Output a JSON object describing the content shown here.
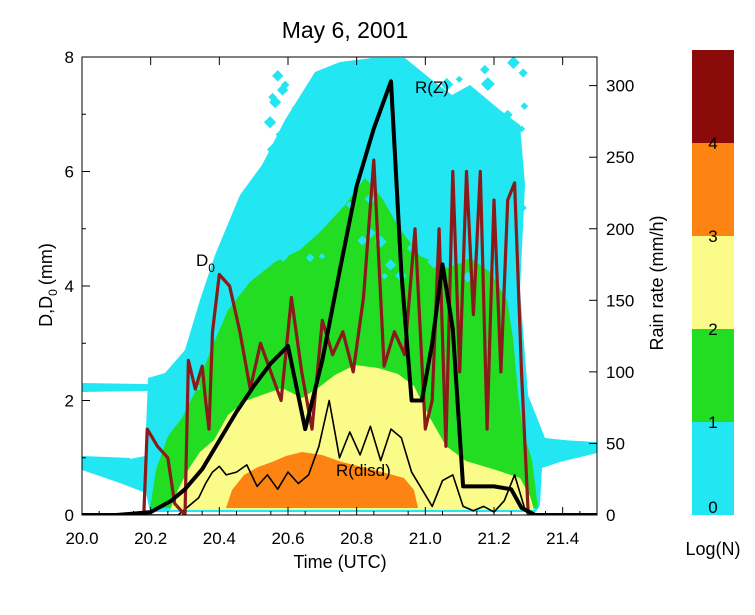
{
  "chart_data": {
    "type": "filled-contour-with-lines",
    "title": "May 6, 2001",
    "xlabel": "Time (UTC)",
    "ylabel_left": "D,D0 (mm)",
    "ylabel_left_main": "D,D",
    "ylabel_left_sub": "0",
    "ylabel_left_unit": "(mm)",
    "ylabel_right": "Rain rate (mm/h)",
    "xlim": [
      20.0,
      21.5
    ],
    "ylim_left": [
      0,
      8
    ],
    "ylim_right": [
      0,
      320
    ],
    "x_ticks": [
      "20.0",
      "20.2",
      "20.4",
      "20.6",
      "20.8",
      "21.0",
      "21.2",
      "21.4"
    ],
    "y_left_ticks": [
      "0",
      "2",
      "4",
      "6",
      "8"
    ],
    "y_right_ticks": [
      "0",
      "50",
      "100",
      "150",
      "200",
      "250",
      "300"
    ],
    "colorbar": {
      "label": "Log(N)",
      "ticks": [
        "0",
        "1",
        "2",
        "3",
        "4"
      ],
      "levels": [
        {
          "from": 0,
          "to": 1,
          "color": "#22e6f2"
        },
        {
          "from": 1,
          "to": 2,
          "color": "#22dd22"
        },
        {
          "from": 2,
          "to": 3,
          "color": "#fbfb8a"
        },
        {
          "from": 3,
          "to": 4,
          "color": "#fd8412"
        },
        {
          "from": 4,
          "to": 5,
          "color": "#8b0a0a"
        }
      ]
    },
    "annotations": {
      "rz": "R(Z)",
      "d0_main": "D",
      "d0_sub": "0",
      "rdisd": "R(disd)"
    },
    "series": [
      {
        "name": "R(Z)",
        "axis": "right",
        "color": "#000000",
        "x": [
          20.0,
          20.1,
          20.2,
          20.26,
          20.3,
          20.35,
          20.4,
          20.45,
          20.5,
          20.55,
          20.6,
          20.65,
          20.7,
          20.75,
          20.8,
          20.85,
          20.9,
          20.93,
          20.96,
          20.99,
          21.02,
          21.05,
          21.08,
          21.11,
          21.14,
          21.17,
          21.2,
          21.25,
          21.28,
          21.32,
          21.5
        ],
        "y": [
          0,
          0,
          2,
          10,
          18,
          32,
          52,
          72,
          90,
          106,
          118,
          60,
          108,
          170,
          230,
          270,
          303,
          170,
          80,
          80,
          120,
          175,
          130,
          20,
          20,
          20,
          20,
          18,
          5,
          0,
          0
        ]
      },
      {
        "name": "D0",
        "axis": "left",
        "color": "#8b1a1a",
        "x": [
          20.0,
          20.18,
          20.19,
          20.22,
          20.25,
          20.27,
          20.3,
          20.31,
          20.33,
          20.35,
          20.36,
          20.37,
          20.38,
          20.4,
          20.43,
          20.46,
          20.49,
          20.52,
          20.55,
          20.58,
          20.61,
          20.64,
          20.67,
          20.7,
          20.73,
          20.76,
          20.79,
          20.82,
          20.85,
          20.88,
          20.91,
          20.94,
          20.97,
          21.0,
          21.02,
          21.04,
          21.06,
          21.08,
          21.1,
          21.12,
          21.14,
          21.16,
          21.18,
          21.2,
          21.22,
          21.24,
          21.26,
          21.28,
          21.3,
          21.32,
          21.5
        ],
        "y": [
          0,
          0,
          1.5,
          1.2,
          1.0,
          0.2,
          0.0,
          2.7,
          2.2,
          2.6,
          2.0,
          1.5,
          3.2,
          4.2,
          4.0,
          3.2,
          2.2,
          3.0,
          2.5,
          2.0,
          3.8,
          2.5,
          1.5,
          3.4,
          2.8,
          3.2,
          2.5,
          3.8,
          6.2,
          2.6,
          3.2,
          2.8,
          5.0,
          1.5,
          2.0,
          5.0,
          1.2,
          6.0,
          2.5,
          6.0,
          3.5,
          6.0,
          1.5,
          5.5,
          2.5,
          5.5,
          5.8,
          2.5,
          0.0,
          0.0,
          0.0
        ]
      },
      {
        "name": "R(disd)",
        "axis": "right",
        "color": "#000000",
        "x": [
          20.0,
          20.28,
          20.31,
          20.34,
          20.36,
          20.38,
          20.4,
          20.42,
          20.45,
          20.48,
          20.51,
          20.54,
          20.57,
          20.6,
          20.63,
          20.66,
          20.69,
          20.72,
          20.75,
          20.78,
          20.81,
          20.84,
          20.87,
          20.9,
          20.93,
          20.96,
          20.99,
          21.02,
          21.05,
          21.08,
          21.11,
          21.14,
          21.17,
          21.2,
          21.23,
          21.26,
          21.29,
          21.3,
          21.5
        ],
        "y": [
          0,
          0,
          6,
          12,
          22,
          30,
          34,
          28,
          30,
          35,
          20,
          28,
          18,
          30,
          22,
          28,
          48,
          80,
          40,
          58,
          42,
          62,
          38,
          60,
          54,
          30,
          18,
          6,
          24,
          28,
          6,
          3,
          6,
          2,
          10,
          28,
          4,
          0,
          0
        ]
      }
    ]
  }
}
